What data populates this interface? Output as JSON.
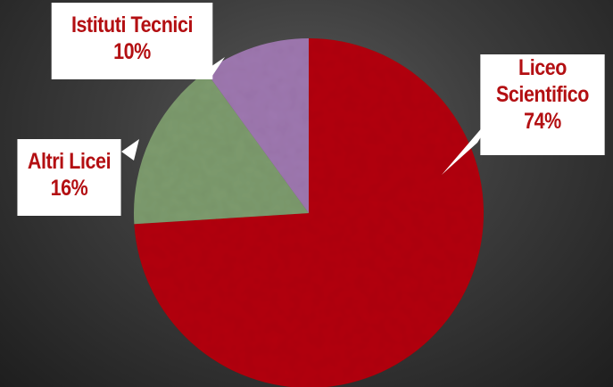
{
  "chart_data": {
    "type": "pie",
    "slices": [
      {
        "label": "Liceo Scientifico",
        "value": 74,
        "value_label": "74%",
        "color": "#b30f12"
      },
      {
        "label": "Altri Licei",
        "value": 16,
        "value_label": "16%",
        "color": "#7e9b6e"
      },
      {
        "label": "Istituti Tecnici",
        "value": 10,
        "value_label": "10%",
        "color": "#9f78b0"
      }
    ],
    "label_color": "#b30f12",
    "label_background": "#ffffff"
  }
}
